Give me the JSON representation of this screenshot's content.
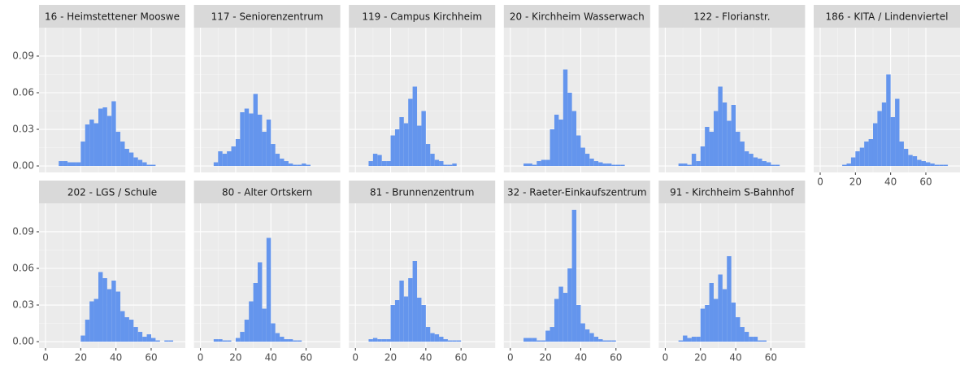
{
  "chart_data": [
    {
      "type": "histogram",
      "title": "16 - Heimstettener Mooswe",
      "color": "#6495ED",
      "grid": true,
      "bins": [
        5,
        7.5,
        10,
        12.5,
        15,
        17.5,
        20,
        22.5,
        25,
        27.5,
        30,
        32.5,
        35,
        37.5,
        40,
        42.5,
        45,
        47.5,
        50,
        52.5,
        55,
        57.5,
        60,
        62.5,
        65,
        67.5,
        70,
        72.5,
        75,
        77.5
      ],
      "values": [
        0,
        0.004,
        0.004,
        0.003,
        0.003,
        0.003,
        0.02,
        0.034,
        0.038,
        0.035,
        0.047,
        0.048,
        0.041,
        0.053,
        0.028,
        0.02,
        0.014,
        0.011,
        0.007,
        0.005,
        0.003,
        0.001,
        0.001,
        0,
        0,
        0,
        0,
        0,
        0
      ],
      "xlim": [
        -3.7,
        79.4
      ],
      "ylim": [
        -0.0053,
        0.1133
      ],
      "xticks": [
        0,
        20,
        40,
        60
      ],
      "yticks": [
        {
          "value": 0,
          "label": "0.00"
        },
        0.03,
        0.06,
        0.09
      ]
    },
    {
      "type": "histogram",
      "title": "117 - Seniorenzentrum",
      "color": "#6495ED",
      "grid": true,
      "bins": [
        5,
        7.5,
        10,
        12.5,
        15,
        17.5,
        20,
        22.5,
        25,
        27.5,
        30,
        32.5,
        35,
        37.5,
        40,
        42.5,
        45,
        47.5,
        50,
        52.5,
        55,
        57.5,
        60,
        62.5,
        65,
        67.5,
        70,
        72.5,
        75,
        77.5
      ],
      "values": [
        0,
        0.003,
        0.012,
        0.01,
        0.012,
        0.016,
        0.022,
        0.044,
        0.047,
        0.043,
        0.059,
        0.042,
        0.028,
        0.038,
        0.018,
        0.01,
        0.006,
        0.004,
        0.002,
        0.001,
        0.001,
        0.002,
        0.001,
        0,
        0,
        0,
        0,
        0,
        0
      ],
      "xlim": [
        -3.7,
        79.4
      ],
      "ylim": [
        -0.0053,
        0.1133
      ],
      "xticks": [
        0,
        20,
        40,
        60
      ],
      "yticks": [
        {
          "value": 0,
          "label": "0.00"
        },
        0.03,
        0.06,
        0.09
      ]
    },
    {
      "type": "histogram",
      "title": "119 - Campus Kirchheim",
      "color": "#6495ED",
      "grid": true,
      "bins": [
        5,
        7.5,
        10,
        12.5,
        15,
        17.5,
        20,
        22.5,
        25,
        27.5,
        30,
        32.5,
        35,
        37.5,
        40,
        42.5,
        45,
        47.5,
        50,
        52.5,
        55,
        57.5,
        60,
        62.5,
        65,
        67.5,
        70,
        72.5,
        75,
        77.5
      ],
      "values": [
        0,
        0.004,
        0.01,
        0.009,
        0.004,
        0.004,
        0.025,
        0.03,
        0.04,
        0.035,
        0.055,
        0.065,
        0.033,
        0.045,
        0.018,
        0.01,
        0.005,
        0.004,
        0.001,
        0.001,
        0.002,
        0,
        0,
        0,
        0,
        0,
        0,
        0,
        0
      ],
      "xlim": [
        -3.7,
        79.4
      ],
      "ylim": [
        -0.0053,
        0.1133
      ],
      "xticks": [
        0,
        20,
        40,
        60
      ],
      "yticks": [
        {
          "value": 0,
          "label": "0.00"
        },
        0.03,
        0.06,
        0.09
      ]
    },
    {
      "type": "histogram",
      "title": "20 - Kirchheim Wasserwach",
      "color": "#6495ED",
      "grid": true,
      "bins": [
        5,
        7.5,
        10,
        12.5,
        15,
        17.5,
        20,
        22.5,
        25,
        27.5,
        30,
        32.5,
        35,
        37.5,
        40,
        42.5,
        45,
        47.5,
        50,
        52.5,
        55,
        57.5,
        60,
        62.5,
        65,
        67.5,
        70,
        72.5,
        75,
        77.5
      ],
      "values": [
        0,
        0.002,
        0.002,
        0.001,
        0.004,
        0.005,
        0.005,
        0.03,
        0.042,
        0.038,
        0.079,
        0.06,
        0.045,
        0.025,
        0.015,
        0.01,
        0.006,
        0.004,
        0.003,
        0.002,
        0.002,
        0.001,
        0.001,
        0.001,
        0,
        0,
        0,
        0,
        0
      ],
      "xlim": [
        -3.7,
        79.4
      ],
      "ylim": [
        -0.0053,
        0.1133
      ],
      "xticks": [
        0,
        20,
        40,
        60
      ],
      "yticks": [
        {
          "value": 0,
          "label": "0.00"
        },
        0.03,
        0.06,
        0.09
      ]
    },
    {
      "type": "histogram",
      "title": "122 - Florianstr.",
      "color": "#6495ED",
      "grid": true,
      "bins": [
        5,
        7.5,
        10,
        12.5,
        15,
        17.5,
        20,
        22.5,
        25,
        27.5,
        30,
        32.5,
        35,
        37.5,
        40,
        42.5,
        45,
        47.5,
        50,
        52.5,
        55,
        57.5,
        60,
        62.5,
        65,
        67.5,
        70,
        72.5,
        75,
        77.5
      ],
      "values": [
        0,
        0.002,
        0.002,
        0.001,
        0.01,
        0.004,
        0.016,
        0.032,
        0.028,
        0.045,
        0.065,
        0.052,
        0.037,
        0.05,
        0.028,
        0.02,
        0.012,
        0.01,
        0.007,
        0.006,
        0.004,
        0.003,
        0.001,
        0.001,
        0,
        0,
        0,
        0,
        0
      ],
      "xlim": [
        -3.7,
        79.4
      ],
      "ylim": [
        -0.0053,
        0.1133
      ],
      "xticks": [
        0,
        20,
        40,
        60
      ],
      "yticks": [
        {
          "value": 0,
          "label": "0.00"
        },
        0.03,
        0.06,
        0.09
      ]
    },
    {
      "type": "histogram",
      "title": "186 - KITA / Lindenviertel",
      "color": "#6495ED",
      "grid": true,
      "bins": [
        5,
        7.5,
        10,
        12.5,
        15,
        17.5,
        20,
        22.5,
        25,
        27.5,
        30,
        32.5,
        35,
        37.5,
        40,
        42.5,
        45,
        47.5,
        50,
        52.5,
        55,
        57.5,
        60,
        62.5,
        65,
        67.5,
        70,
        72.5,
        75,
        77.5
      ],
      "values": [
        0,
        0,
        0,
        0.001,
        0.002,
        0.007,
        0.012,
        0.015,
        0.02,
        0.022,
        0.035,
        0.045,
        0.052,
        0.075,
        0.04,
        0.055,
        0.02,
        0.014,
        0.009,
        0.008,
        0.005,
        0.004,
        0.003,
        0.002,
        0.001,
        0.001,
        0.001,
        0,
        0
      ],
      "xlim": [
        -3.7,
        79.4
      ],
      "ylim": [
        -0.0053,
        0.1133
      ],
      "xticks": [
        0,
        20,
        40,
        60
      ],
      "yticks": [
        {
          "value": 0,
          "label": "0.00"
        },
        0.03,
        0.06,
        0.09
      ]
    },
    {
      "type": "histogram",
      "title": "202 - LGS / Schule",
      "color": "#6495ED",
      "grid": true,
      "bins": [
        5,
        7.5,
        10,
        12.5,
        15,
        17.5,
        20,
        22.5,
        25,
        27.5,
        30,
        32.5,
        35,
        37.5,
        40,
        42.5,
        45,
        47.5,
        50,
        52.5,
        55,
        57.5,
        60,
        62.5,
        65,
        67.5,
        70,
        72.5,
        75,
        77.5
      ],
      "values": [
        0,
        0,
        0,
        0,
        0,
        0,
        0.005,
        0.018,
        0.033,
        0.035,
        0.057,
        0.052,
        0.043,
        0.05,
        0.041,
        0.025,
        0.02,
        0.018,
        0.012,
        0.008,
        0.004,
        0.006,
        0.003,
        0.001,
        0,
        0.001,
        0.001,
        0,
        0
      ],
      "xlim": [
        -3.7,
        79.4
      ],
      "ylim": [
        -0.0053,
        0.1133
      ],
      "xticks": [
        0,
        20,
        40,
        60
      ],
      "yticks": [
        {
          "value": 0,
          "label": "0.00"
        },
        0.03,
        0.06,
        0.09
      ]
    },
    {
      "type": "histogram",
      "title": "80 - Alter Ortskern",
      "color": "#6495ED",
      "grid": true,
      "bins": [
        5,
        7.5,
        10,
        12.5,
        15,
        17.5,
        20,
        22.5,
        25,
        27.5,
        30,
        32.5,
        35,
        37.5,
        40,
        42.5,
        45,
        47.5,
        50,
        52.5,
        55,
        57.5,
        60,
        62.5,
        65,
        67.5,
        70,
        72.5,
        75,
        77.5
      ],
      "values": [
        0,
        0.002,
        0.002,
        0.001,
        0.001,
        0,
        0.003,
        0.008,
        0.018,
        0.033,
        0.048,
        0.065,
        0.027,
        0.085,
        0.015,
        0.007,
        0.004,
        0.002,
        0.002,
        0.001,
        0.001,
        0,
        0,
        0,
        0,
        0,
        0,
        0,
        0
      ],
      "xlim": [
        -3.7,
        79.4
      ],
      "ylim": [
        -0.0053,
        0.1133
      ],
      "xticks": [
        0,
        20,
        40,
        60
      ],
      "yticks": [
        {
          "value": 0,
          "label": "0.00"
        },
        0.03,
        0.06,
        0.09
      ]
    },
    {
      "type": "histogram",
      "title": "81 - Brunnenzentrum",
      "color": "#6495ED",
      "grid": true,
      "bins": [
        5,
        7.5,
        10,
        12.5,
        15,
        17.5,
        20,
        22.5,
        25,
        27.5,
        30,
        32.5,
        35,
        37.5,
        40,
        42.5,
        45,
        47.5,
        50,
        52.5,
        55,
        57.5,
        60,
        62.5,
        65,
        67.5,
        70,
        72.5,
        75,
        77.5
      ],
      "values": [
        0,
        0.002,
        0.003,
        0.002,
        0.002,
        0.002,
        0.03,
        0.034,
        0.05,
        0.037,
        0.052,
        0.066,
        0.036,
        0.03,
        0.012,
        0.007,
        0.006,
        0.004,
        0.002,
        0.001,
        0.001,
        0.001,
        0,
        0,
        0,
        0,
        0,
        0,
        0
      ],
      "xlim": [
        -3.7,
        79.4
      ],
      "ylim": [
        -0.0053,
        0.1133
      ],
      "xticks": [
        0,
        20,
        40,
        60
      ],
      "yticks": [
        {
          "value": 0,
          "label": "0.00"
        },
        0.03,
        0.06,
        0.09
      ]
    },
    {
      "type": "histogram",
      "title": "32 - Raeter-Einkaufszentrum",
      "color": "#6495ED",
      "grid": true,
      "bins": [
        5,
        7.5,
        10,
        12.5,
        15,
        17.5,
        20,
        22.5,
        25,
        27.5,
        30,
        32.5,
        35,
        37.5,
        40,
        42.5,
        45,
        47.5,
        50,
        52.5,
        55,
        57.5,
        60,
        62.5,
        65,
        67.5,
        70,
        72.5,
        75,
        77.5
      ],
      "values": [
        0,
        0.003,
        0.003,
        0.003,
        0.001,
        0.001,
        0.009,
        0.012,
        0.035,
        0.045,
        0.04,
        0.06,
        0.108,
        0.03,
        0.015,
        0.01,
        0.007,
        0.004,
        0.002,
        0.001,
        0.001,
        0.001,
        0,
        0,
        0,
        0,
        0,
        0,
        0
      ],
      "xlim": [
        -3.7,
        79.4
      ],
      "ylim": [
        -0.0053,
        0.1133
      ],
      "xticks": [
        0,
        20,
        40,
        60
      ],
      "yticks": [
        {
          "value": 0,
          "label": "0.00"
        },
        0.03,
        0.06,
        0.09
      ]
    },
    {
      "type": "histogram",
      "title": "91 - Kirchheim S-Bahnhof",
      "color": "#6495ED",
      "grid": true,
      "bins": [
        5,
        7.5,
        10,
        12.5,
        15,
        17.5,
        20,
        22.5,
        25,
        27.5,
        30,
        32.5,
        35,
        37.5,
        40,
        42.5,
        45,
        47.5,
        50,
        52.5,
        55,
        57.5,
        60,
        62.5,
        65,
        67.5,
        70,
        72.5,
        75,
        77.5
      ],
      "values": [
        0,
        0.001,
        0.005,
        0.003,
        0.004,
        0.004,
        0.027,
        0.03,
        0.048,
        0.035,
        0.055,
        0.043,
        0.07,
        0.032,
        0.02,
        0.012,
        0.008,
        0.004,
        0.004,
        0.001,
        0.001,
        0,
        0,
        0,
        0,
        0,
        0,
        0,
        0
      ],
      "xlim": [
        -3.7,
        79.4
      ],
      "ylim": [
        -0.0053,
        0.1133
      ],
      "xticks": [
        0,
        20,
        40,
        60
      ],
      "yticks": [
        {
          "value": 0,
          "label": "0.00"
        },
        0.03,
        0.06,
        0.09
      ]
    }
  ]
}
